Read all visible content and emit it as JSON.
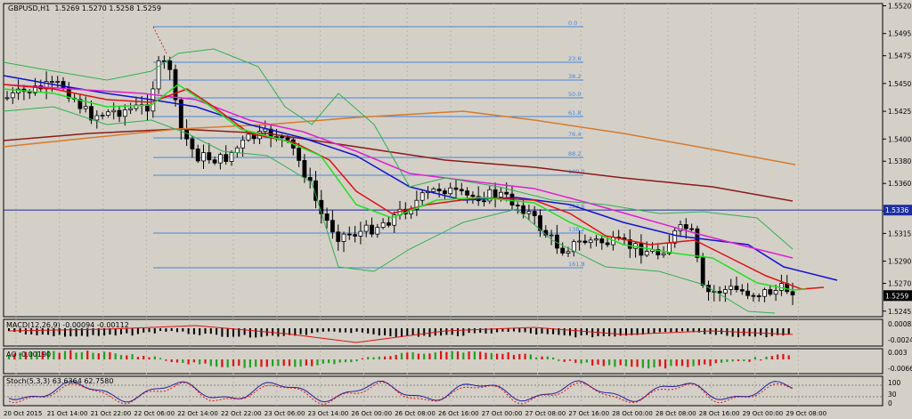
{
  "main": {
    "symbol_label": "GBPUSD,H1",
    "ohlc_label": "1.5269 1.5270 1.5258 1.5259",
    "price_scale": [
      "1.5520",
      "1.5495",
      "1.5475",
      "1.5450",
      "1.5425",
      "1.5400",
      "1.5380",
      "1.5360",
      "1.5335",
      "1.5315",
      "1.5290",
      "1.5270",
      "1.5245"
    ],
    "hline_price": "1.5336",
    "current_price": "1.5259",
    "fib_levels": [
      "0.0",
      "23.6",
      "38.2",
      "50.0",
      "61.8",
      "76.4",
      "88.2",
      "100.0",
      "123.6",
      "138.2",
      "161.8"
    ],
    "time_labels": [
      "20 Oct 2015",
      "21 Oct 14:00",
      "21 Oct 22:00",
      "22 Oct 06:00",
      "22 Oct 14:00",
      "22 Oct 22:00",
      "23 Oct 06:00",
      "23 Oct 14:00",
      "26 Oct 00:00",
      "26 Oct 08:00",
      "26 Oct 16:00",
      "27 Oct 00:00",
      "27 Oct 08:00",
      "27 Oct 16:00",
      "28 Oct 00:00",
      "28 Oct 08:00",
      "28 Oct 16:00",
      "29 Oct 00:00",
      "29 Oct 08:00"
    ],
    "colors": {
      "bg": "#d4d0c8",
      "grid": "#b8b4ac",
      "hline": "#1d2fa0",
      "fib": "#4a86d9",
      "ma_slow": "#8b1a1a",
      "ma_orange": "#d77a2a",
      "ma_blue": "#1010d0",
      "ma_magenta": "#e020d0",
      "ma_red": "#e01010",
      "ma_lime": "#20e020",
      "bands": "#30b050"
    }
  },
  "macd": {
    "label": "MACD(12,26,9) -0.00094 -0.00112",
    "scale": [
      "0.00082",
      "-0.00241"
    ]
  },
  "ao": {
    "label": "AO -0.00190",
    "scale": [
      "0.003",
      "-0.00664"
    ]
  },
  "stoch": {
    "label": "Stoch(5,3,3) 63.6364 62.7580",
    "scale": [
      "100",
      "30",
      "0"
    ]
  }
}
